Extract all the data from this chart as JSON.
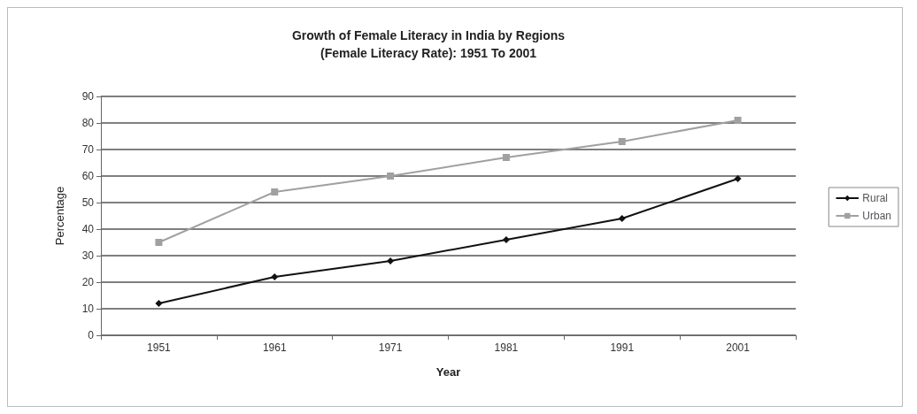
{
  "chart_data": {
    "type": "line",
    "title": "Growth of Female Literacy in India by Regions\n(Female Literacy Rate): 1951 To 2001",
    "xlabel": "Year",
    "ylabel": "Percentage",
    "categories": [
      "1951",
      "1961",
      "1971",
      "1981",
      "1991",
      "2001"
    ],
    "series": [
      {
        "name": "Rural",
        "color": "#111111",
        "marker": "diamond",
        "values": [
          12,
          22,
          28,
          36,
          44,
          59
        ]
      },
      {
        "name": "Urban",
        "color": "#a0a0a0",
        "marker": "square",
        "values": [
          35,
          54,
          60,
          67,
          73,
          81
        ]
      }
    ],
    "ylim": [
      0,
      90
    ],
    "yticks": [
      0,
      10,
      20,
      30,
      40,
      50,
      60,
      70,
      80,
      90
    ],
    "grid": "y",
    "legend": "right",
    "line_style": "solid"
  }
}
